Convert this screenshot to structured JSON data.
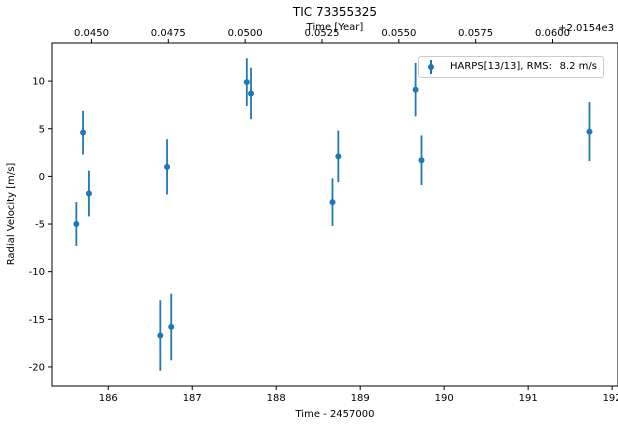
{
  "chart_data": {
    "type": "scatter",
    "title": "TIC 73355325",
    "xlabel": "Time - 2457000",
    "ylabel": "Radial Velocity [m/s]",
    "top_xlabel": "Time [Year]",
    "top_offset_label": "+2.0154e3",
    "xlim": [
      185.33,
      192.07
    ],
    "ylim": [
      -22.0,
      14.0
    ],
    "xticks": [
      186,
      187,
      188,
      189,
      190,
      191,
      192
    ],
    "yticks": [
      -20,
      -15,
      -10,
      -5,
      0,
      5,
      10
    ],
    "top_ticks": [
      {
        "label": "0.0450",
        "x": 185.8
      },
      {
        "label": "0.0475",
        "x": 186.715
      },
      {
        "label": "0.0500",
        "x": 187.63
      },
      {
        "label": "0.0525",
        "x": 188.545
      },
      {
        "label": "0.0550",
        "x": 189.46
      },
      {
        "label": "0.0575",
        "x": 190.375
      },
      {
        "label": "0.0600",
        "x": 191.29
      }
    ],
    "grid": false,
    "legend_position": "top-right",
    "color": "#1f77b4",
    "series": [
      {
        "name": "HARPS[13/13], RMS:",
        "rms": "8.2 m/s",
        "points": [
          {
            "x": 185.62,
            "y": -5.0,
            "err": 2.3
          },
          {
            "x": 185.7,
            "y": 4.6,
            "err": 2.3
          },
          {
            "x": 185.77,
            "y": -1.8,
            "err": 2.4
          },
          {
            "x": 186.62,
            "y": -16.7,
            "err": 3.7
          },
          {
            "x": 186.7,
            "y": 1.0,
            "err": 2.9
          },
          {
            "x": 186.75,
            "y": -15.8,
            "err": 3.5
          },
          {
            "x": 187.65,
            "y": 9.9,
            "err": 2.5
          },
          {
            "x": 187.7,
            "y": 8.7,
            "err": 2.7
          },
          {
            "x": 188.67,
            "y": -2.7,
            "err": 2.5
          },
          {
            "x": 188.74,
            "y": 2.1,
            "err": 2.7
          },
          {
            "x": 189.66,
            "y": 9.1,
            "err": 2.8
          },
          {
            "x": 189.73,
            "y": 1.7,
            "err": 2.6
          },
          {
            "x": 191.73,
            "y": 4.7,
            "err": 3.1
          }
        ]
      }
    ]
  }
}
